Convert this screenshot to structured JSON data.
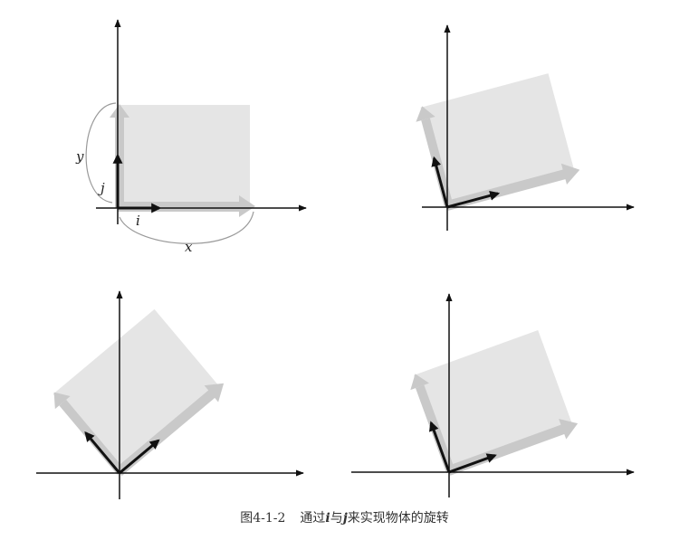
{
  "labels": {
    "y": "y",
    "j": "j",
    "i": "i",
    "x": "x"
  },
  "caption": {
    "number": "图4-1-2",
    "text_before": "通过",
    "vec_i": "i",
    "text_middle": "与",
    "vec_j": "j",
    "text_after": "来实现物体的旋转"
  },
  "colors": {
    "box": "#e5e5e5",
    "arrow": "#c9c9c9",
    "axis": "#111111",
    "curve": "#9a9a9a"
  },
  "rotations_deg": [
    0,
    15,
    -40,
    -20
  ]
}
